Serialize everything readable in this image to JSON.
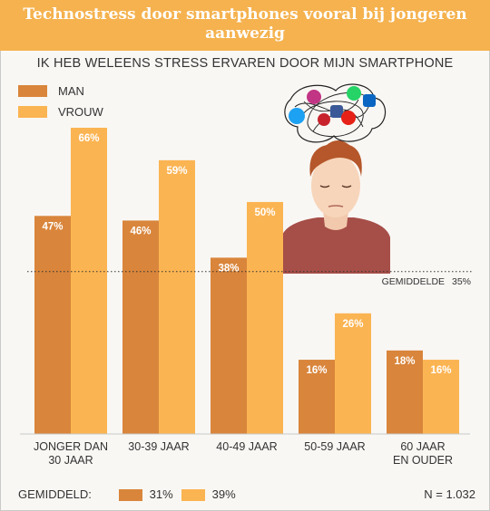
{
  "header": {
    "title": "Technostress door smartphones vooral bij jongeren aanwezig"
  },
  "colors": {
    "man": "#d9853b",
    "vrouw": "#fbb452",
    "title_bg": "#f5b24f"
  },
  "chart_data": {
    "type": "bar",
    "title": "IK HEB WELEENS STRESS ERVAREN DOOR MIJN SMARTPHONE",
    "categories": [
      "JONGER DAN 30 JAAR",
      "30-39 JAAR",
      "40-49 JAAR",
      "50-59 JAAR",
      "60 JAAR EN OUDER"
    ],
    "category_lines": [
      [
        "JONGER DAN",
        "30 JAAR"
      ],
      [
        "30-39 JAAR"
      ],
      [
        "40-49 JAAR"
      ],
      [
        "50-59 JAAR"
      ],
      [
        "60 JAAR",
        "EN OUDER"
      ]
    ],
    "series": [
      {
        "name": "MAN",
        "values": [
          47,
          46,
          38,
          16,
          18
        ],
        "labels": [
          "47%",
          "46%",
          "38%",
          "16%",
          "18%"
        ]
      },
      {
        "name": "VROUW",
        "values": [
          66,
          59,
          50,
          26,
          16
        ],
        "labels": [
          "66%",
          "59%",
          "50%",
          "26%",
          "16%"
        ]
      }
    ],
    "unit": "%",
    "ylim": [
      0,
      66
    ],
    "reference_line": {
      "value": 35,
      "label": "GEMIDDELDE",
      "value_label": "35%"
    },
    "grid": false,
    "legend_placement": "top-left"
  },
  "footer": {
    "label": "GEMIDDELD:",
    "man_avg": "31%",
    "vrouw_avg": "39%",
    "n": "N = 1.032"
  },
  "illustration": {
    "icons": [
      "instagram-icon",
      "whatsapp-icon",
      "linkedin-icon",
      "twitter-icon",
      "facebook-icon",
      "pinterest-icon",
      "youtube-icon"
    ]
  }
}
